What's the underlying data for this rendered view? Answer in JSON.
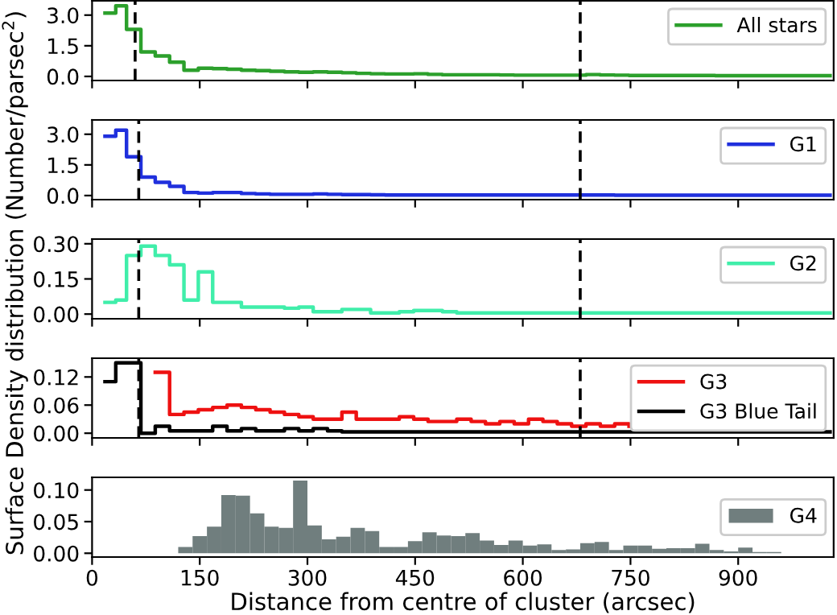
{
  "chart_data": [
    {
      "type": "step",
      "xlim": [
        0,
        1033
      ],
      "xticks": [
        0,
        150,
        300,
        450,
        600,
        750,
        900
      ],
      "ylim": [
        -0.2,
        3.7
      ],
      "yticks": [
        {
          "value": 0,
          "label": "0.0"
        },
        {
          "value": 1.5,
          "label": "1.5"
        },
        {
          "value": 3,
          "label": "3.0"
        }
      ],
      "tick_labels": "y",
      "legend": "top right",
      "grid": false,
      "series": [
        {
          "name": "All stars",
          "color": "#2ca02c",
          "x": [
            18,
            33,
            48,
            68,
            88,
            108,
            128,
            148,
            168,
            188,
            208,
            228,
            248,
            268,
            288,
            308,
            328,
            348,
            368,
            388,
            408,
            428,
            448,
            468,
            488,
            508,
            528,
            548,
            568,
            588,
            608,
            628,
            648,
            668,
            688,
            708,
            728,
            748,
            768,
            788,
            808,
            828,
            848,
            868,
            888,
            908,
            928,
            948,
            968,
            988,
            1008,
            1028
          ],
          "values": [
            3.1,
            3.45,
            2.3,
            1.2,
            1.0,
            0.7,
            0.3,
            0.4,
            0.38,
            0.35,
            0.3,
            0.28,
            0.25,
            0.22,
            0.2,
            0.22,
            0.2,
            0.18,
            0.15,
            0.13,
            0.12,
            0.12,
            0.13,
            0.1,
            0.08,
            0.08,
            0.08,
            0.08,
            0.07,
            0.06,
            0.06,
            0.06,
            0.06,
            0.06,
            0.09,
            0.07,
            0.06,
            0.05,
            0.05,
            0.05,
            0.05,
            0.05,
            0.05,
            0.04,
            0.04,
            0.04,
            0.04,
            0.04,
            0.04,
            0.04,
            0.04,
            0.04
          ]
        }
      ],
      "ref_lines": [
        {
          "axis": "x",
          "value": 60,
          "color": "#000000",
          "line_style": "dashed"
        },
        {
          "axis": "x",
          "value": 680,
          "color": "#000000",
          "line_style": "dashed"
        }
      ]
    },
    {
      "type": "step",
      "xlim": [
        0,
        1033
      ],
      "xticks": [
        0,
        150,
        300,
        450,
        600,
        750,
        900
      ],
      "ylim": [
        -0.2,
        3.7
      ],
      "yticks": [
        {
          "value": 0,
          "label": "0.0"
        },
        {
          "value": 1.5,
          "label": "1.5"
        },
        {
          "value": 3,
          "label": "3.0"
        }
      ],
      "tick_labels": "y",
      "legend": "top right",
      "grid": false,
      "series": [
        {
          "name": "G1",
          "color": "#2030dd",
          "x": [
            18,
            33,
            48,
            68,
            88,
            108,
            128,
            148,
            168,
            188,
            208,
            228,
            248,
            268,
            288,
            308,
            328,
            348,
            368,
            388,
            408,
            428,
            448,
            468,
            488,
            508,
            528,
            548,
            568,
            588,
            608,
            628,
            648,
            668,
            688,
            708,
            728,
            748,
            768,
            788,
            808,
            828,
            848,
            868,
            888,
            908,
            928,
            948,
            968,
            988,
            1008,
            1028
          ],
          "values": [
            2.9,
            3.2,
            1.9,
            0.9,
            0.65,
            0.45,
            0.15,
            0.12,
            0.15,
            0.15,
            0.1,
            0.08,
            0.06,
            0.06,
            0.06,
            0.08,
            0.06,
            0.05,
            0.05,
            0.04,
            0.03,
            0.03,
            0.03,
            0.03,
            0.03,
            0.03,
            0.03,
            0.03,
            0.03,
            0.03,
            0.03,
            0.03,
            0.03,
            0.03,
            0.03,
            0.03,
            0.02,
            0.02,
            0.02,
            0.02,
            0.02,
            0.02,
            0.02,
            0.02,
            0.02,
            0.02,
            0.02,
            0.02,
            0.02,
            0.02,
            0.02,
            0.02
          ]
        }
      ],
      "ref_lines": [
        {
          "axis": "x",
          "value": 65,
          "color": "#000000",
          "line_style": "dashed"
        },
        {
          "axis": "x",
          "value": 680,
          "color": "#000000",
          "line_style": "dashed"
        }
      ]
    },
    {
      "type": "step",
      "xlim": [
        0,
        1033
      ],
      "xticks": [
        0,
        150,
        300,
        450,
        600,
        750,
        900
      ],
      "ylim": [
        -0.02,
        0.32
      ],
      "yticks": [
        {
          "value": 0,
          "label": "0.00"
        },
        {
          "value": 0.15,
          "label": "0.15"
        },
        {
          "value": 0.3,
          "label": "0.30"
        }
      ],
      "tick_labels": "y",
      "legend": "top right",
      "grid": false,
      "ylabel": "Surface Density distribution (Number/parsec$^{2}$)",
      "series": [
        {
          "name": "G2",
          "color": "#40eeaa",
          "x": [
            18,
            33,
            48,
            68,
            88,
            108,
            128,
            148,
            168,
            188,
            208,
            228,
            248,
            268,
            288,
            308,
            328,
            348,
            368,
            388,
            408,
            428,
            448,
            468,
            488,
            508,
            528,
            548,
            568,
            588,
            608,
            628,
            648,
            668,
            688,
            708,
            728,
            748,
            768,
            788,
            808,
            828,
            848,
            868,
            888,
            908,
            928,
            948,
            968,
            988,
            1008,
            1028
          ],
          "values": [
            0.05,
            0.06,
            0.25,
            0.29,
            0.25,
            0.21,
            0.06,
            0.18,
            0.05,
            0.05,
            0.03,
            0.03,
            0.03,
            0.025,
            0.03,
            0.01,
            0.01,
            0.02,
            0.02,
            0.005,
            0.005,
            0.01,
            0.015,
            0.015,
            0.01,
            0.005,
            0.005,
            0.005,
            0.005,
            0.005,
            0.005,
            0.005,
            0.005,
            0.005,
            0.005,
            0.005,
            0.005,
            0.005,
            0.005,
            0.005,
            0.005,
            0.005,
            0.005,
            0.005,
            0.005,
            0.005,
            0.005,
            0.005,
            0.005,
            0.005,
            0.005,
            0.005
          ]
        }
      ],
      "ref_lines": [
        {
          "axis": "x",
          "value": 65,
          "color": "#000000",
          "line_style": "dashed"
        },
        {
          "axis": "x",
          "value": 680,
          "color": "#000000",
          "line_style": "dashed"
        }
      ]
    },
    {
      "type": "step",
      "xlim": [
        0,
        1033
      ],
      "xticks": [
        0,
        150,
        300,
        450,
        600,
        750,
        900
      ],
      "ylim": [
        -0.01,
        0.16
      ],
      "yticks": [
        {
          "value": 0,
          "label": "0.00"
        },
        {
          "value": 0.06,
          "label": "0.06"
        },
        {
          "value": 0.12,
          "label": "0.12"
        }
      ],
      "tick_labels": "y",
      "legend": "right",
      "grid": false,
      "series": [
        {
          "name": "G3",
          "color": "#ee1111",
          "x": [
            88,
            108,
            128,
            148,
            168,
            188,
            208,
            228,
            248,
            268,
            288,
            308,
            328,
            348,
            368,
            388,
            408,
            428,
            448,
            468,
            488,
            508,
            528,
            548,
            568,
            588,
            608,
            628,
            648,
            668,
            688,
            708,
            728,
            748
          ],
          "values": [
            0.13,
            0.04,
            0.045,
            0.05,
            0.055,
            0.06,
            0.055,
            0.05,
            0.045,
            0.04,
            0.035,
            0.03,
            0.03,
            0.045,
            0.03,
            0.03,
            0.03,
            0.035,
            0.03,
            0.025,
            0.025,
            0.03,
            0.025,
            0.02,
            0.025,
            0.02,
            0.03,
            0.025,
            0.02,
            0.015,
            0.02,
            0.015,
            0.02,
            0.015
          ]
        },
        {
          "name": "G3 Blue Tail",
          "color": "#000000",
          "x": [
            18,
            33,
            48,
            68,
            88,
            108,
            128,
            148,
            168,
            188,
            208,
            228,
            248,
            268,
            288,
            308,
            328,
            348,
            368,
            388,
            408,
            428,
            448,
            468,
            488,
            508,
            528,
            548,
            568,
            588,
            608,
            628,
            648,
            668,
            688,
            708,
            728,
            748,
            768,
            788,
            808,
            828,
            848,
            868,
            888,
            908,
            928,
            948,
            968,
            988,
            1008,
            1028
          ],
          "values": [
            0.11,
            0.15,
            0.15,
            0,
            0.015,
            0.005,
            0.005,
            0.005,
            0.015,
            0.005,
            0.01,
            0.005,
            0.005,
            0.01,
            0.005,
            0.01,
            0.005,
            0.003,
            0.003,
            0.003,
            0.003,
            0.003,
            0.003,
            0.003,
            0.003,
            0.003,
            0.003,
            0.003,
            0.003,
            0.003,
            0.003,
            0.003,
            0.003,
            0.003,
            0.003,
            0.003,
            0.003,
            0.003,
            0.003,
            0.003,
            0.003,
            0.003,
            0.003,
            0.003,
            0.003,
            0.003,
            0.003,
            0.003,
            0.003,
            0.003,
            0.003,
            0.003
          ]
        }
      ],
      "ref_lines": [
        {
          "axis": "x",
          "value": 65,
          "color": "#000000",
          "line_style": "dashed"
        },
        {
          "axis": "x",
          "value": 680,
          "color": "#000000",
          "line_style": "dashed"
        }
      ]
    },
    {
      "type": "histogram",
      "xlim": [
        0,
        1033
      ],
      "xticks": [
        0,
        150,
        300,
        450,
        600,
        750,
        900
      ],
      "ylim": [
        -0.006,
        0.12
      ],
      "yticks": [
        {
          "value": 0,
          "label": "0.00"
        },
        {
          "value": 0.05,
          "label": "0.05"
        },
        {
          "value": 0.1,
          "label": "0.10"
        }
      ],
      "legend": "right",
      "grid": false,
      "xlabel": "Distance from centre of cluster (arcsec)",
      "bins": [
        120,
        140,
        160,
        180,
        200,
        220,
        240,
        260,
        280,
        300,
        320,
        340,
        360,
        380,
        400,
        420,
        440,
        460,
        480,
        500,
        520,
        540,
        560,
        580,
        600,
        620,
        640,
        660,
        680,
        700,
        720,
        740,
        760,
        780,
        800,
        820,
        840,
        860,
        880,
        900,
        920,
        940,
        960
      ],
      "series": [
        {
          "name": "G4",
          "color": "#707e7e",
          "values": [
            0.01,
            0.027,
            0.042,
            0.092,
            0.091,
            0.063,
            0.042,
            0.04,
            0.115,
            0.044,
            0.022,
            0.026,
            0.04,
            0.035,
            0.01,
            0.01,
            0.019,
            0.033,
            0.028,
            0.027,
            0.032,
            0.02,
            0.013,
            0.02,
            0.012,
            0.014,
            0.005,
            0.006,
            0.016,
            0.018,
            0.005,
            0.012,
            0.012,
            0.007,
            0.008,
            0.008,
            0.015,
            0.005,
            0.003,
            0.009,
            0.002,
            0.002
          ]
        }
      ]
    }
  ]
}
